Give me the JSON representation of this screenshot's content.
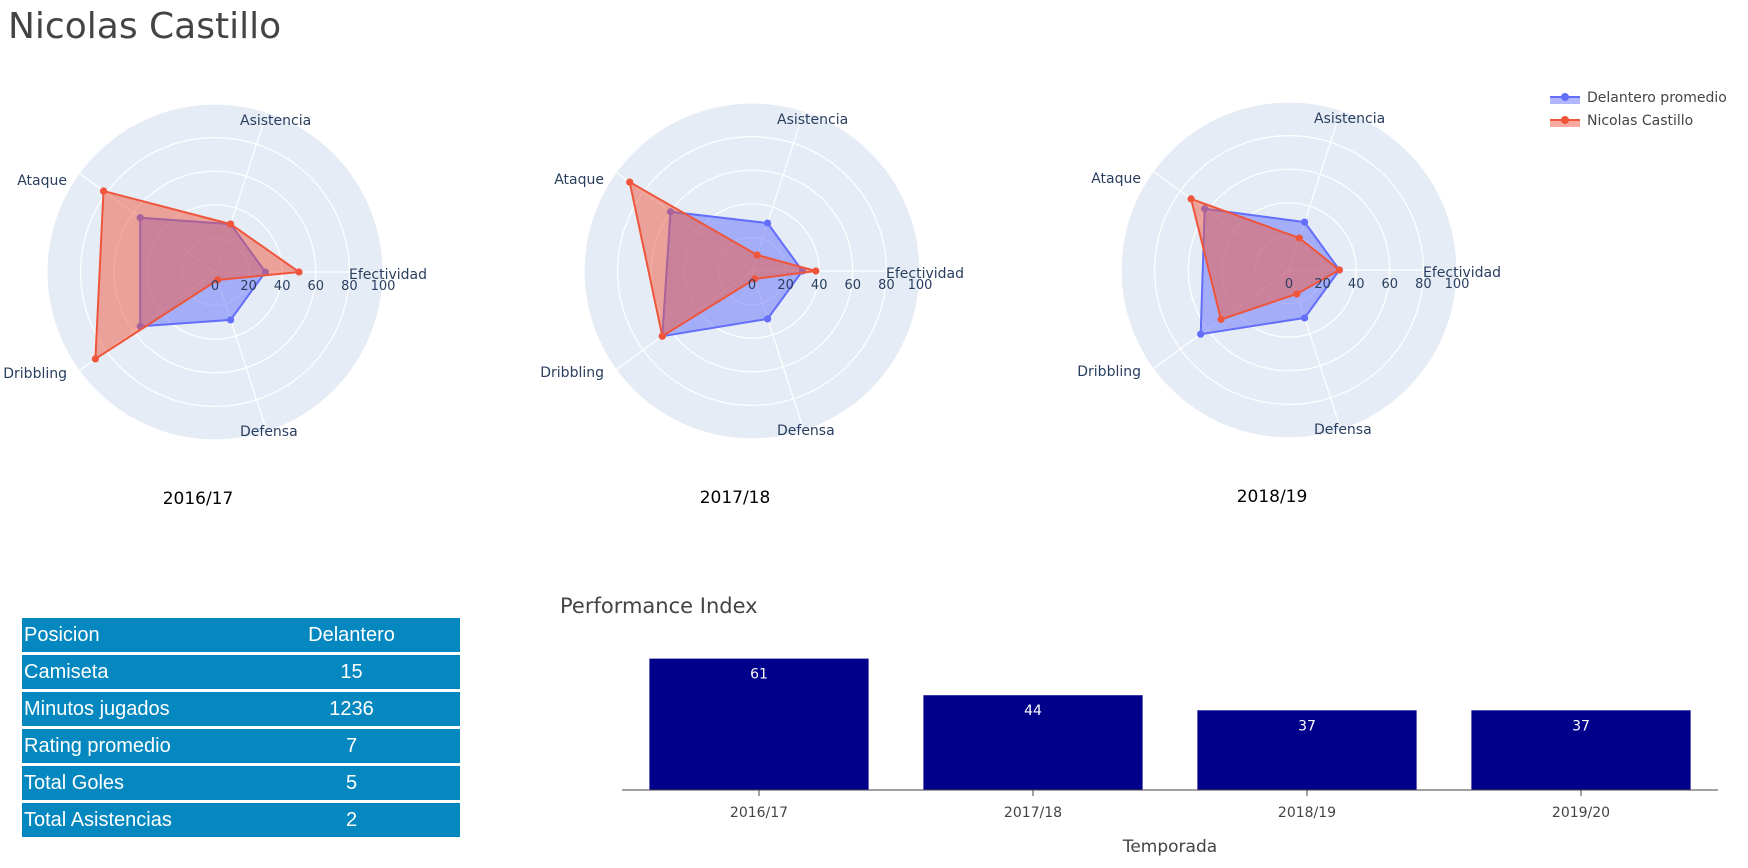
{
  "page": {
    "title": "Nicolas Castillo"
  },
  "legend": [
    {
      "name": "Delantero promedio",
      "color": "#636efa"
    },
    {
      "name": "Nicolas Castillo",
      "color": "#ef553b"
    }
  ],
  "info_table": [
    {
      "label": "Posicion",
      "value": "Delantero"
    },
    {
      "label": "Camiseta",
      "value": "15"
    },
    {
      "label": "Minutos jugados",
      "value": "1236"
    },
    {
      "label": "Rating promedio",
      "value": "7"
    },
    {
      "label": "Total Goles",
      "value": "5"
    },
    {
      "label": "Total Asistencias",
      "value": "2"
    }
  ],
  "chart_data": [
    {
      "type": "radar",
      "title": "2016/17",
      "axes": [
        "Efectividad",
        "Asistencia",
        "Ataque",
        "Dribbling",
        "Defensa"
      ],
      "radial_ticks": [
        "0",
        "20",
        "40",
        "60",
        "80",
        "100"
      ],
      "range": [
        0,
        100
      ],
      "series": [
        {
          "name": "Delantero promedio",
          "values": [
            30,
            30,
            55,
            55,
            30
          ]
        },
        {
          "name": "Nicolas Castillo",
          "values": [
            50,
            30,
            82,
            88,
            5
          ]
        }
      ]
    },
    {
      "type": "radar",
      "title": "2017/18",
      "axes": [
        "Efectividad",
        "Asistencia",
        "Ataque",
        "Dribbling",
        "Defensa"
      ],
      "radial_ticks": [
        "0",
        "20",
        "40",
        "60",
        "80",
        "100"
      ],
      "range": [
        0,
        100
      ],
      "series": [
        {
          "name": "Delantero promedio",
          "values": [
            30,
            30,
            60,
            66,
            30
          ]
        },
        {
          "name": "Nicolas Castillo",
          "values": [
            38,
            10,
            90,
            66,
            5
          ]
        }
      ]
    },
    {
      "type": "radar",
      "title": "2018/19",
      "axes": [
        "Efectividad",
        "Asistencia",
        "Ataque",
        "Dribbling",
        "Defensa"
      ],
      "radial_ticks": [
        "0",
        "20",
        "40",
        "60",
        "80",
        "100"
      ],
      "range": [
        0,
        100
      ],
      "series": [
        {
          "name": "Delantero promedio",
          "values": [
            30,
            30,
            62,
            65,
            30
          ]
        },
        {
          "name": "Nicolas Castillo",
          "values": [
            30,
            20,
            72,
            50,
            15
          ]
        }
      ]
    },
    {
      "type": "bar",
      "title": "Performance Index",
      "xlabel": "Temporada",
      "ylabel": "",
      "categories": [
        "2016/17",
        "2017/18",
        "2018/19",
        "2019/20"
      ],
      "values": [
        61,
        44,
        37,
        37
      ],
      "ylim": [
        0,
        65
      ],
      "color": "#00008b"
    }
  ]
}
